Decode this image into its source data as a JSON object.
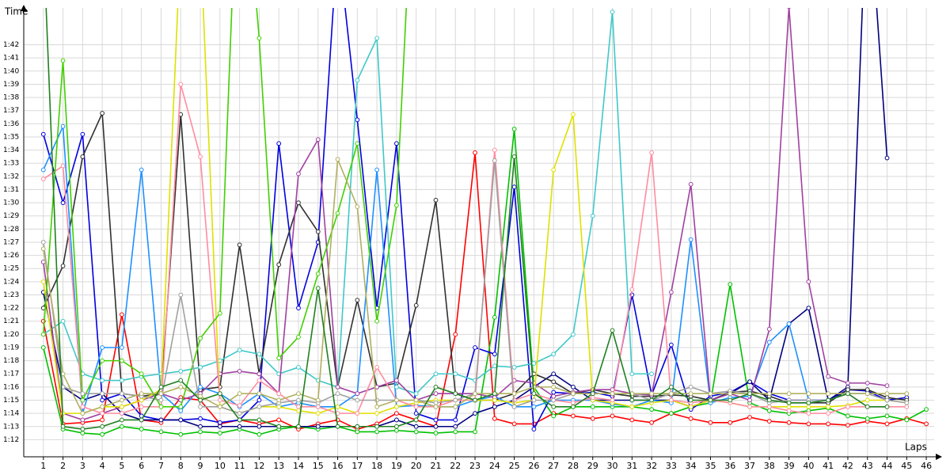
{
  "chart_data": {
    "type": "line",
    "y_label": "Time",
    "x_label": "Laps",
    "x": [
      1,
      2,
      3,
      4,
      5,
      6,
      7,
      8,
      9,
      10,
      11,
      12,
      13,
      14,
      15,
      16,
      17,
      18,
      19,
      20,
      21,
      22,
      23,
      24,
      25,
      26,
      27,
      28,
      29,
      30,
      31,
      32,
      33,
      34,
      35,
      36,
      37,
      38,
      39,
      40,
      41,
      42,
      43,
      44,
      45,
      46
    ],
    "xlim": [
      0,
      46.4
    ],
    "xticks": [
      1,
      2,
      3,
      4,
      5,
      6,
      7,
      8,
      9,
      10,
      11,
      12,
      13,
      14,
      15,
      16,
      17,
      18,
      19,
      20,
      21,
      22,
      23,
      24,
      25,
      26,
      27,
      28,
      29,
      30,
      31,
      32,
      33,
      34,
      35,
      36,
      37,
      38,
      39,
      40,
      41,
      42,
      43,
      44,
      45,
      46
    ],
    "ylim": [
      70.7,
      104.8
    ],
    "yticks": [
      {
        "value": 72,
        "label": "1:12"
      },
      {
        "value": 73,
        "label": "1:13"
      },
      {
        "value": 74,
        "label": "1:14"
      },
      {
        "value": 75,
        "label": "1:15"
      },
      {
        "value": 76,
        "label": "1:16"
      },
      {
        "value": 77,
        "label": "1:17"
      },
      {
        "value": 78,
        "label": "1:18"
      },
      {
        "value": 79,
        "label": "1:19"
      },
      {
        "value": 80,
        "label": "1:20"
      },
      {
        "value": 81,
        "label": "1:21"
      },
      {
        "value": 82,
        "label": "1:22"
      },
      {
        "value": 83,
        "label": "1:23"
      },
      {
        "value": 84,
        "label": "1:24"
      },
      {
        "value": 85,
        "label": "1:25"
      },
      {
        "value": 86,
        "label": "1:26"
      },
      {
        "value": 87,
        "label": "1:27"
      },
      {
        "value": 88,
        "label": "1:28"
      },
      {
        "value": 89,
        "label": "1:29"
      },
      {
        "value": 90,
        "label": "1:30"
      },
      {
        "value": 91,
        "label": "1:31"
      },
      {
        "value": 92,
        "label": "1:32"
      },
      {
        "value": 93,
        "label": "1:33"
      },
      {
        "value": 94,
        "label": "1:34"
      },
      {
        "value": 95,
        "label": "1:35"
      },
      {
        "value": 96,
        "label": "1:36"
      },
      {
        "value": 97,
        "label": "1:37"
      },
      {
        "value": 98,
        "label": "1:38"
      },
      {
        "value": 99,
        "label": "1:39"
      },
      {
        "value": 100,
        "label": "1:40"
      },
      {
        "value": 101,
        "label": "1:41"
      },
      {
        "value": 102,
        "label": "1:42"
      }
    ],
    "grid": true,
    "series": [
      {
        "color": "#ff0000",
        "values": [
          81,
          73.2,
          73.3,
          73.5,
          81.5,
          73.5,
          73.3,
          75.2,
          75,
          73.2,
          73.5,
          73.2,
          73.5,
          72.8,
          73.2,
          73.5,
          72.8,
          73.2,
          74,
          73.5,
          73,
          80,
          93.8,
          73.6,
          73.2,
          73.2,
          74,
          73.8,
          73.6,
          73.8,
          73.5,
          73.3,
          74,
          73.6,
          73.3,
          73.3,
          73.7,
          73.4,
          73.3,
          73.2,
          73.2,
          73.1,
          73.4,
          73.2,
          73.6,
          73.2
        ]
      },
      {
        "color": "#00c000",
        "values": [
          79,
          72.8,
          72.5,
          72.4,
          73,
          72.8,
          72.6,
          72.4,
          72.6,
          72.5,
          72.8,
          72.4,
          72.8,
          73,
          72.8,
          73,
          72.6,
          72.6,
          72.7,
          72.6,
          72.5,
          72.6,
          72.6,
          81.3,
          95.6,
          76,
          73.8,
          74.5,
          74.5,
          74.5,
          74.5,
          74.3,
          74,
          74.5,
          74.8,
          83.8,
          74.8,
          74.2,
          74,
          74.2,
          74.4,
          73.8,
          73.6,
          73.8,
          73.5,
          74.3
        ]
      },
      {
        "color": "#0000e0",
        "values": [
          95.2,
          90,
          95.2,
          75,
          75.5,
          73.8,
          73.5,
          73.5,
          73.6,
          73.3,
          73.5,
          75,
          94.5,
          82,
          87,
          110,
          96.3,
          82,
          94.5,
          74,
          73.5,
          73.5,
          79,
          78.5,
          91.2,
          72.8,
          75.6,
          75.5,
          75.6,
          75.3,
          83,
          75.4,
          79.2,
          74.3,
          75.3,
          75.6,
          76.4,
          75.5,
          75,
          75,
          75,
          75.8,
          75.7,
          75,
          75.2,
          null
        ]
      },
      {
        "color": "#000080",
        "values": [
          83.2,
          76,
          75,
          75.5,
          74,
          73.5,
          73.5,
          73.5,
          73,
          73,
          73,
          73,
          73,
          73,
          73,
          73,
          73,
          73,
          73.5,
          73,
          73,
          73,
          74,
          74.5,
          75,
          76,
          77,
          76,
          75,
          75,
          75,
          75,
          75,
          74.5,
          75,
          75.5,
          76.4,
          75,
          80.8,
          82,
          75,
          76,
          115,
          93.4,
          null,
          null
        ]
      },
      {
        "color": "#303030",
        "values": [
          82,
          85.2,
          93.5,
          96.8,
          75.5,
          75.3,
          75.5,
          96.7,
          75.8,
          76,
          86.8,
          77,
          85.3,
          90,
          87.8,
          76,
          82.6,
          76,
          76.3,
          82.2,
          90.2,
          75.5,
          75,
          75,
          75.5,
          77,
          76.4,
          75.5,
          75.8,
          75.5,
          75.3,
          75.3,
          75.4,
          75.3,
          75,
          75.6,
          75.7,
          75.3,
          74.8,
          74.8,
          74.8,
          75.8,
          75.8,
          75.2,
          75,
          null
        ]
      },
      {
        "color": "#1e90ff",
        "values": [
          92.5,
          95.8,
          74,
          79,
          79,
          92.5,
          75.5,
          74.2,
          76,
          75.5,
          74.5,
          75.5,
          74.5,
          74.8,
          74.5,
          74.5,
          75.5,
          92.5,
          74.5,
          74.6,
          74.5,
          74.5,
          75,
          75.3,
          74.5,
          74.5,
          75,
          75,
          75,
          74.7,
          74.5,
          75,
          74.8,
          87.2,
          74.8,
          75.2,
          75.3,
          79.4,
          80.8,
          75,
          75,
          75.5,
          75.5,
          null,
          null,
          null
        ]
      },
      {
        "color": "#40c8c8",
        "values": [
          80,
          81,
          77,
          76.5,
          76.5,
          76.8,
          77,
          77.2,
          77.5,
          78,
          78.8,
          78.5,
          77,
          77.5,
          76.5,
          76,
          99.3,
          102.5,
          76,
          75.5,
          77,
          77,
          76.5,
          77.6,
          77.5,
          77.8,
          78.5,
          80,
          89,
          104.5,
          77,
          77,
          null,
          null,
          null,
          null,
          null,
          null,
          null,
          null,
          null,
          null,
          null,
          null,
          null,
          null
        ]
      },
      {
        "color": "#a040a0",
        "values": [
          85.5,
          74,
          73.5,
          74,
          74.5,
          75,
          75.5,
          75,
          75.5,
          77,
          77.2,
          77,
          75.5,
          92.2,
          94.8,
          76,
          75.5,
          76,
          76.5,
          75,
          75.5,
          75.5,
          75.5,
          75.2,
          76.5,
          76.3,
          75.3,
          75.6,
          75.8,
          75.8,
          75.5,
          75.4,
          83.2,
          91.4,
          75,
          75.5,
          75,
          80.4,
          104.9,
          84,
          76.8,
          76.3,
          76.3,
          76.1,
          null,
          null
        ]
      },
      {
        "color": "#e0e000",
        "values": [
          84,
          74,
          74,
          74.5,
          74.5,
          75,
          75.8,
          110,
          110,
          74.5,
          74,
          74.5,
          74.5,
          74.2,
          74,
          74.5,
          74,
          74,
          74.5,
          74.8,
          75,
          75,
          75,
          75,
          74.8,
          75,
          92.5,
          96.7,
          75,
          74.8,
          74.5,
          74.8,
          75,
          74.5,
          75,
          74.8,
          74.5,
          74.5,
          74.5,
          74.5,
          74.5,
          74.6,
          75,
          75,
          74.8,
          null
        ]
      },
      {
        "color": "#ff8ca0",
        "values": [
          91.8,
          92.8,
          74.5,
          74,
          74,
          74.5,
          74.5,
          99,
          93.5,
          75,
          74.6,
          76.5,
          75.5,
          74.5,
          74.5,
          74,
          74,
          77.5,
          75,
          74.5,
          74.5,
          75,
          75,
          94,
          75,
          75.5,
          75,
          74.8,
          75.2,
          75,
          83.4,
          93.8,
          75,
          74.8,
          75,
          74.8,
          74.5,
          74.5,
          74.2,
          74,
          74,
          74.5,
          74.5,
          74.5,
          74.5,
          null
        ]
      },
      {
        "color": "#40d000",
        "values": [
          80,
          100.8,
          75,
          78,
          78,
          77,
          74.5,
          74.5,
          79.7,
          81.6,
          120,
          102.5,
          78.2,
          79.8,
          84.6,
          89.2,
          94.5,
          81,
          89.8,
          120,
          null,
          null,
          null,
          null,
          null,
          null,
          null,
          null,
          null,
          null,
          null,
          null,
          null,
          null,
          null,
          null,
          null,
          null,
          null,
          null,
          null,
          null,
          null,
          null,
          null,
          null
        ]
      },
      {
        "color": "#a0a0a0",
        "values": [
          87,
          76,
          75.5,
          75.5,
          75.5,
          75.3,
          75,
          83,
          74.5,
          74.5,
          74,
          74.5,
          74.8,
          75,
          74.8,
          75.5,
          75,
          75,
          75,
          75,
          74.8,
          75,
          75.5,
          93.2,
          74.5,
          75,
          75,
          75.5,
          75.5,
          75.5,
          75.5,
          75,
          75.5,
          76,
          75.5,
          75.7,
          75.5,
          74.8,
          75,
          75,
          75,
          75.5,
          75.5,
          75,
          74.8,
          null
        ]
      },
      {
        "color": "#b0b060",
        "values": [
          86.5,
          77,
          74,
          74.5,
          75,
          75.5,
          75.5,
          76,
          75.3,
          74.5,
          75.5,
          75.5,
          75,
          75.5,
          75,
          93.3,
          89.7,
          74.5,
          75,
          75,
          74.5,
          74.5,
          75.5,
          75.5,
          75.5,
          76,
          76,
          75.5,
          75.5,
          75.5,
          75.5,
          75.5,
          75.5,
          75.5,
          75.5,
          75.5,
          75.5,
          75.5,
          75.5,
          75.5,
          75.5,
          75.5,
          75.5,
          75.5,
          75.5,
          null
        ]
      },
      {
        "color": "#208020",
        "values": [
          110,
          73,
          72.8,
          73,
          73.5,
          73.5,
          76,
          76.5,
          75,
          75.5,
          73.5,
          73.5,
          73,
          73,
          83.5,
          73,
          73,
          73,
          73,
          73.5,
          76,
          75.5,
          75,
          75.5,
          93.5,
          75.5,
          74.5,
          74.5,
          75.5,
          80.3,
          75,
          75,
          76,
          75,
          75,
          75,
          75.5,
          75,
          74.8,
          74.8,
          75,
          75.5,
          74.5,
          74.5,
          null,
          null
        ]
      }
    ]
  }
}
